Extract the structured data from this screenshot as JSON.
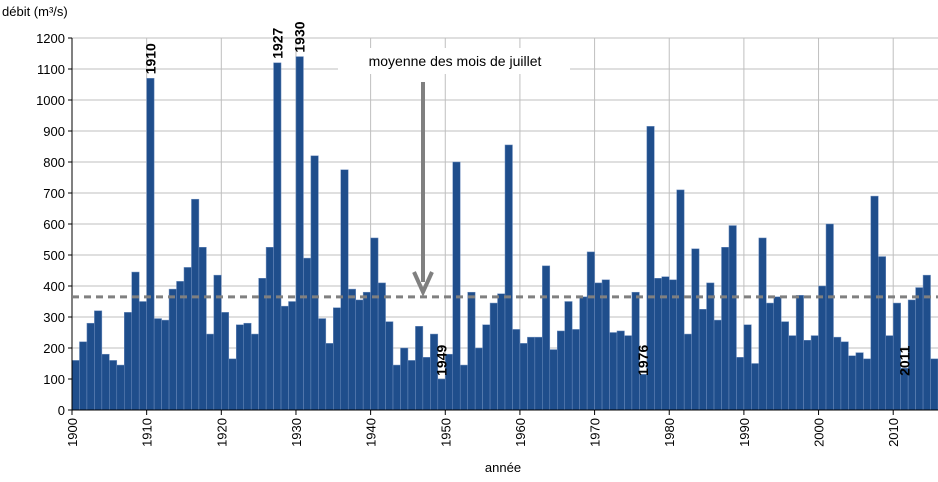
{
  "chart_data": {
    "type": "bar",
    "y_label": "débit (m³/s)",
    "x_label": "année",
    "x": [
      1900,
      1901,
      1902,
      1903,
      1904,
      1905,
      1906,
      1907,
      1908,
      1909,
      1910,
      1911,
      1912,
      1913,
      1914,
      1915,
      1916,
      1917,
      1918,
      1919,
      1920,
      1921,
      1922,
      1923,
      1924,
      1925,
      1926,
      1927,
      1928,
      1929,
      1930,
      1931,
      1932,
      1933,
      1934,
      1935,
      1936,
      1937,
      1938,
      1939,
      1940,
      1941,
      1942,
      1943,
      1944,
      1945,
      1946,
      1947,
      1948,
      1949,
      1950,
      1951,
      1952,
      1953,
      1954,
      1955,
      1956,
      1957,
      1958,
      1959,
      1960,
      1961,
      1962,
      1963,
      1964,
      1965,
      1966,
      1967,
      1968,
      1969,
      1970,
      1971,
      1972,
      1973,
      1974,
      1975,
      1976,
      1977,
      1978,
      1979,
      1980,
      1981,
      1982,
      1983,
      1984,
      1985,
      1986,
      1987,
      1988,
      1989,
      1990,
      1991,
      1992,
      1993,
      1994,
      1995,
      1996,
      1997,
      1998,
      1999,
      2000,
      2001,
      2002,
      2003,
      2004,
      2005,
      2006,
      2007,
      2008,
      2009,
      2010,
      2011,
      2012,
      2013,
      2014,
      2015
    ],
    "values": [
      160,
      220,
      280,
      320,
      180,
      160,
      145,
      315,
      445,
      350,
      1070,
      295,
      290,
      390,
      415,
      460,
      680,
      525,
      245,
      435,
      315,
      165,
      275,
      280,
      245,
      425,
      525,
      1120,
      335,
      350,
      1140,
      490,
      820,
      295,
      215,
      330,
      775,
      390,
      355,
      380,
      555,
      410,
      285,
      145,
      200,
      160,
      270,
      170,
      245,
      100,
      180,
      800,
      145,
      380,
      200,
      275,
      345,
      375,
      855,
      260,
      215,
      235,
      235,
      465,
      195,
      255,
      350,
      260,
      365,
      510,
      410,
      420,
      250,
      255,
      240,
      380,
      115,
      915,
      425,
      430,
      420,
      710,
      245,
      520,
      325,
      410,
      290,
      525,
      595,
      170,
      275,
      150,
      555,
      345,
      365,
      285,
      240,
      370,
      225,
      240,
      400,
      600,
      235,
      220,
      175,
      185,
      165,
      690,
      495,
      240,
      345,
      135,
      355,
      395,
      435,
      165
    ],
    "color": "#1f4e8c",
    "xlim": [
      1900,
      2016
    ],
    "xticks": [
      1900,
      1910,
      1920,
      1930,
      1940,
      1950,
      1960,
      1970,
      1980,
      1990,
      2000,
      2010
    ],
    "ylim": [
      0,
      1200
    ],
    "yticks": [
      0,
      100,
      200,
      300,
      400,
      500,
      600,
      700,
      800,
      900,
      1000,
      1100,
      1200
    ],
    "grid": true,
    "mean": {
      "value": 365,
      "label": "moyenne des mois de juillet",
      "color": "#808080"
    },
    "annotations": [
      {
        "text": "1910",
        "x": 1910,
        "color": "#1f3fbf"
      },
      {
        "text": "1927",
        "x": 1927,
        "color": "#1f3fbf"
      },
      {
        "text": "1930",
        "x": 1930,
        "color": "#1f3fbf"
      },
      {
        "text": "1949",
        "x": 1949,
        "color": "#e8141a"
      },
      {
        "text": "1976",
        "x": 1976,
        "color": "#e8141a"
      },
      {
        "text": "2011",
        "x": 2011,
        "color": "#e8141a"
      }
    ]
  }
}
